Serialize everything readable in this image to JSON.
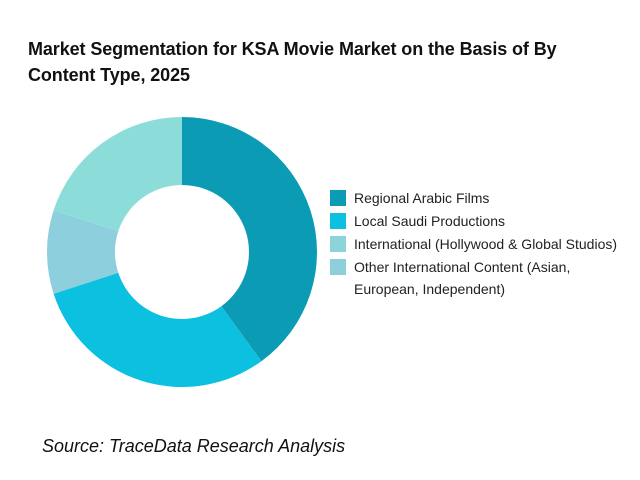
{
  "chart_data": {
    "type": "pie",
    "title": "Market Segmentation for KSA Movie Market on the Basis of  By Content Type, 2025",
    "donut": true,
    "categories": [
      "Regional Arabic Films",
      "Local Saudi Productions",
      "International (Hollywood & Global Studios)",
      "Other International Content (Asian, European, Independent)"
    ],
    "values": [
      40,
      30,
      20,
      10
    ],
    "colors": [
      "#0B9BB5",
      "#0CC0DF",
      "#8CD4DA",
      "#8ECFDD"
    ],
    "slice_colors_draw_order": [
      "#0B9BB5",
      "#0CC0DF",
      "#8ECFDD",
      "#8CDDDA"
    ],
    "legend_position": "right"
  },
  "source": "Source: TraceData Research Analysis"
}
